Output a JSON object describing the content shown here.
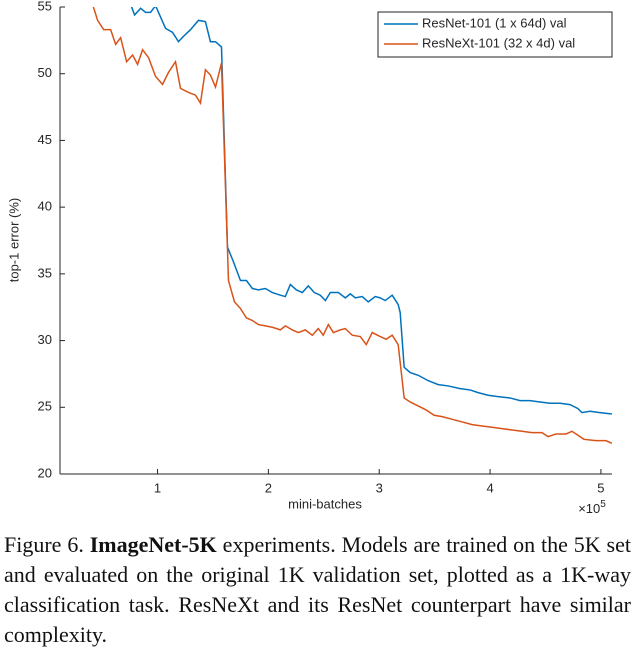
{
  "chart_data": {
    "type": "line",
    "xlabel": "mini-batches",
    "ylabel": "top-1 error (%)",
    "x_scale_label": {
      "base": "×10",
      "exponent": "5"
    },
    "xlim": [
      0.12,
      5.1
    ],
    "ylim": [
      20,
      55
    ],
    "xticks": [
      1,
      2,
      3,
      4,
      5
    ],
    "yticks": [
      20,
      25,
      30,
      35,
      40,
      45,
      50,
      55
    ],
    "grid": false,
    "legend": "upper right",
    "series": [
      {
        "name": "ResNet-101 (1 x 64d) val",
        "color": "#0072bd",
        "x": [
          0.757,
          0.793,
          0.847,
          0.892,
          0.937,
          0.982,
          1.072,
          1.135,
          1.189,
          1.234,
          1.297,
          1.369,
          1.432,
          1.477,
          1.523,
          1.577,
          1.631,
          1.685,
          1.748,
          1.802,
          1.856,
          1.91,
          1.973,
          2.036,
          2.108,
          2.153,
          2.198,
          2.252,
          2.306,
          2.36,
          2.414,
          2.468,
          2.514,
          2.559,
          2.631,
          2.694,
          2.739,
          2.784,
          2.847,
          2.901,
          2.964,
          3.009,
          3.054,
          3.117,
          3.171,
          3.189,
          3.225,
          3.279,
          3.351,
          3.441,
          3.532,
          3.622,
          3.73,
          3.82,
          3.892,
          3.982,
          4.072,
          4.18,
          4.27,
          4.36,
          4.45,
          4.541,
          4.631,
          4.721,
          4.793,
          4.829,
          4.901,
          4.991,
          5.099
        ],
        "values": [
          55.2,
          54.4,
          54.9,
          54.6,
          54.6,
          55.1,
          53.4,
          53.1,
          52.4,
          52.8,
          53.3,
          54.0,
          53.9,
          52.4,
          52.4,
          52.0,
          37.0,
          35.9,
          34.5,
          34.5,
          33.9,
          33.8,
          33.9,
          33.6,
          33.4,
          33.3,
          34.2,
          33.8,
          33.6,
          34.1,
          33.6,
          33.4,
          33.0,
          33.6,
          33.6,
          33.2,
          33.5,
          33.2,
          33.3,
          32.9,
          33.3,
          33.2,
          33.0,
          33.4,
          32.7,
          32.1,
          28.0,
          27.6,
          27.4,
          27.0,
          26.7,
          26.6,
          26.4,
          26.3,
          26.1,
          25.9,
          25.8,
          25.7,
          25.5,
          25.5,
          25.4,
          25.3,
          25.3,
          25.2,
          24.9,
          24.6,
          24.7,
          24.6,
          24.5
        ]
      },
      {
        "name": "ResNeXt-101 (32 x 4d) val",
        "color": "#d95319",
        "x": [
          0.414,
          0.459,
          0.514,
          0.577,
          0.622,
          0.667,
          0.721,
          0.775,
          0.82,
          0.865,
          0.919,
          0.982,
          1.045,
          1.099,
          1.162,
          1.207,
          1.279,
          1.342,
          1.387,
          1.432,
          1.477,
          1.523,
          1.577,
          1.64,
          1.694,
          1.748,
          1.802,
          1.856,
          1.91,
          1.973,
          2.036,
          2.108,
          2.153,
          2.216,
          2.27,
          2.333,
          2.396,
          2.45,
          2.495,
          2.541,
          2.586,
          2.649,
          2.694,
          2.757,
          2.829,
          2.883,
          2.937,
          3.009,
          3.063,
          3.117,
          3.171,
          3.225,
          3.279,
          3.351,
          3.423,
          3.495,
          3.568,
          3.658,
          3.748,
          3.838,
          3.928,
          4.018,
          4.108,
          4.198,
          4.288,
          4.378,
          4.468,
          4.523,
          4.595,
          4.685,
          4.739,
          4.793,
          4.847,
          4.955,
          5.045,
          5.099
        ],
        "values": [
          55.2,
          54.0,
          53.3,
          53.3,
          52.2,
          52.7,
          50.9,
          51.4,
          50.7,
          51.8,
          51.2,
          49.8,
          49.2,
          50.1,
          50.9,
          48.9,
          48.6,
          48.4,
          47.8,
          50.3,
          49.9,
          49.0,
          50.8,
          34.5,
          32.9,
          32.4,
          31.7,
          31.5,
          31.2,
          31.1,
          31.0,
          30.8,
          31.1,
          30.8,
          30.6,
          30.8,
          30.4,
          30.9,
          30.4,
          31.2,
          30.6,
          30.8,
          30.9,
          30.4,
          30.3,
          29.7,
          30.6,
          30.3,
          30.1,
          30.4,
          29.7,
          25.7,
          25.4,
          25.1,
          24.8,
          24.4,
          24.3,
          24.1,
          23.9,
          23.7,
          23.6,
          23.5,
          23.4,
          23.3,
          23.2,
          23.1,
          23.1,
          22.8,
          23.0,
          23.0,
          23.2,
          22.9,
          22.6,
          22.5,
          22.5,
          22.3
        ]
      }
    ]
  },
  "caption": {
    "label": "Figure 6.",
    "bold": "ImageNet-5K",
    "text": " experiments. Models are trained on the 5K set and evaluated on the original 1K validation set, plotted as a 1K-way classification task. ResNeXt and its ResNet counterpart have similar complexity."
  }
}
